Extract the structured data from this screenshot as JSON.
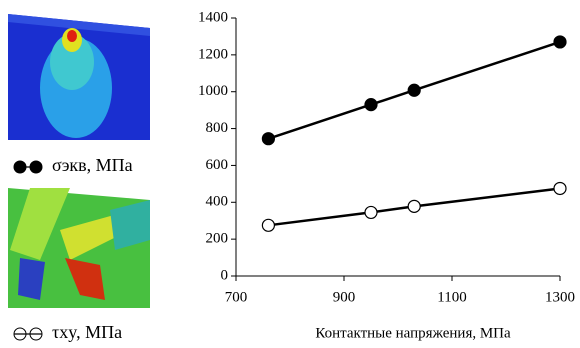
{
  "chart_data": {
    "type": "line",
    "x_label": "Контактные напряжения, МПа",
    "x": [
      760,
      950,
      1030,
      1300
    ],
    "series": [
      {
        "name": "σэкв, МПа",
        "color": "#000000",
        "marker_filled": true,
        "values": [
          745,
          930,
          1008,
          1270
        ]
      },
      {
        "name": "τxy, МПа",
        "color": "#000000",
        "marker_filled": false,
        "values": [
          275,
          345,
          378,
          475
        ]
      }
    ],
    "xlim": [
      700,
      1300
    ],
    "xticks": [
      700,
      900,
      1100,
      1300
    ],
    "ylim": [
      0,
      1400
    ],
    "yticks": [
      0,
      200,
      400,
      600,
      800,
      1000,
      1200,
      1400
    ]
  }
}
